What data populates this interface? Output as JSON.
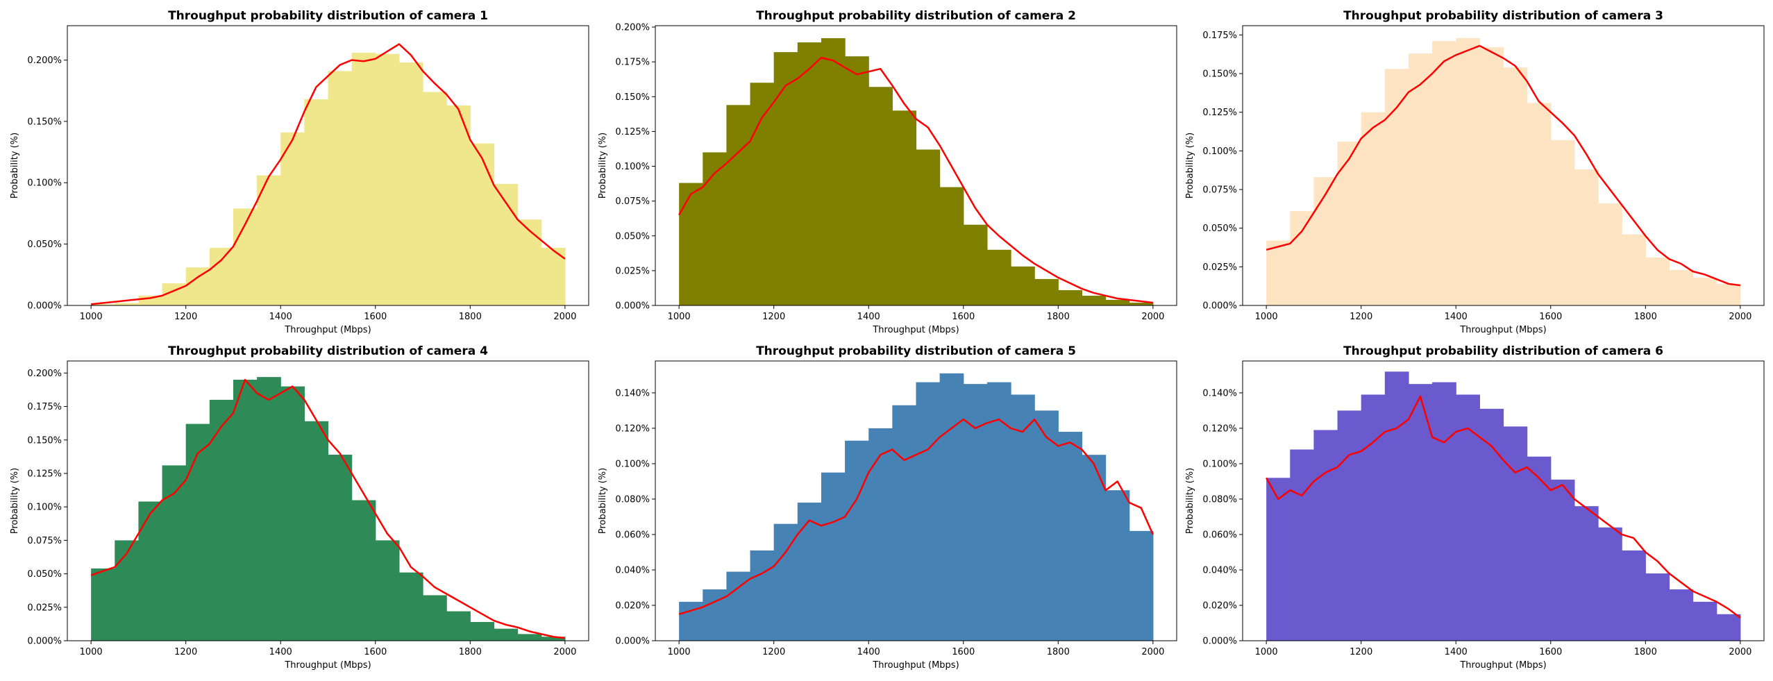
{
  "chart_data": [
    {
      "type": "bar",
      "title": "Throughput probability distribution of camera 1",
      "xlabel": "Throughput (Mbps)",
      "ylabel": "Probability (%)",
      "xlim": [
        950,
        2050
      ],
      "ylim": [
        0,
        0.00228
      ],
      "xticks": [
        1000,
        1200,
        1400,
        1600,
        1800,
        2000
      ],
      "xtick_labels": [
        "1000",
        "1200",
        "1400",
        "1600",
        "1800",
        "2000"
      ],
      "yticks": [
        0,
        0.0005,
        0.001,
        0.0015,
        0.002
      ],
      "ytick_labels": [
        "0.000%",
        "0.050%",
        "0.100%",
        "0.150%",
        "0.200%"
      ],
      "bar_color": "#f0e68c",
      "line_color": "#ff0000",
      "bins": [
        1000,
        1050,
        1100,
        1150,
        1200,
        1250,
        1300,
        1350,
        1400,
        1450,
        1500,
        1550,
        1600,
        1650,
        1700,
        1750,
        1800,
        1850,
        1900,
        1950,
        2000
      ],
      "bar_values": [
        1e-05,
        2e-05,
        8e-05,
        0.00018,
        0.00031,
        0.00047,
        0.00079,
        0.00106,
        0.00141,
        0.00168,
        0.00191,
        0.00206,
        0.00205,
        0.00198,
        0.00174,
        0.00163,
        0.00132,
        0.00099,
        0.0007,
        0.00047
      ],
      "curve_x": [
        1000,
        1025,
        1050,
        1075,
        1100,
        1125,
        1150,
        1175,
        1200,
        1225,
        1250,
        1275,
        1300,
        1325,
        1350,
        1375,
        1400,
        1425,
        1450,
        1475,
        1500,
        1525,
        1550,
        1575,
        1600,
        1625,
        1650,
        1675,
        1700,
        1725,
        1750,
        1775,
        1800,
        1825,
        1850,
        1875,
        1900,
        1925,
        1950,
        1975,
        2000
      ],
      "curve_y": [
        1e-05,
        2e-05,
        3e-05,
        4e-05,
        5e-05,
        6e-05,
        8e-05,
        0.00012,
        0.00016,
        0.00023,
        0.00029,
        0.00037,
        0.00048,
        0.00066,
        0.00085,
        0.00105,
        0.00119,
        0.00135,
        0.00158,
        0.00178,
        0.00187,
        0.00196,
        0.002,
        0.00199,
        0.00201,
        0.00207,
        0.00213,
        0.00204,
        0.00191,
        0.00181,
        0.00172,
        0.0016,
        0.00135,
        0.0012,
        0.00098,
        0.00084,
        0.0007,
        0.00061,
        0.00053,
        0.00045,
        0.00038
      ]
    },
    {
      "type": "bar",
      "title": "Throughput probability distribution of camera 2",
      "xlabel": "Throughput (Mbps)",
      "ylabel": "Probability (%)",
      "xlim": [
        950,
        2050
      ],
      "ylim": [
        0,
        0.00201
      ],
      "xticks": [
        1000,
        1200,
        1400,
        1600,
        1800,
        2000
      ],
      "xtick_labels": [
        "1000",
        "1200",
        "1400",
        "1600",
        "1800",
        "2000"
      ],
      "yticks": [
        0,
        0.00025,
        0.0005,
        0.00075,
        0.001,
        0.00125,
        0.0015,
        0.00175,
        0.002
      ],
      "ytick_labels": [
        "0.000%",
        "0.025%",
        "0.050%",
        "0.075%",
        "0.100%",
        "0.125%",
        "0.150%",
        "0.175%",
        "0.200%"
      ],
      "bar_color": "#808000",
      "line_color": "#ff0000",
      "bins": [
        1000,
        1050,
        1100,
        1150,
        1200,
        1250,
        1300,
        1350,
        1400,
        1450,
        1500,
        1550,
        1600,
        1650,
        1700,
        1750,
        1800,
        1850,
        1900,
        1950,
        2000
      ],
      "bar_values": [
        0.00088,
        0.0011,
        0.00144,
        0.0016,
        0.00182,
        0.00189,
        0.00192,
        0.00179,
        0.00157,
        0.0014,
        0.00112,
        0.00085,
        0.00058,
        0.0004,
        0.00028,
        0.00019,
        0.00011,
        7e-05,
        4e-05,
        2e-05
      ],
      "curve_x": [
        1000,
        1025,
        1050,
        1075,
        1100,
        1125,
        1150,
        1175,
        1200,
        1225,
        1250,
        1275,
        1300,
        1325,
        1350,
        1375,
        1400,
        1425,
        1450,
        1475,
        1500,
        1525,
        1550,
        1575,
        1600,
        1625,
        1650,
        1675,
        1700,
        1725,
        1750,
        1775,
        1800,
        1825,
        1850,
        1875,
        1900,
        1925,
        1950,
        1975,
        2000
      ],
      "curve_y": [
        0.00065,
        0.0008,
        0.00085,
        0.00095,
        0.00102,
        0.0011,
        0.00118,
        0.00135,
        0.00146,
        0.00158,
        0.00163,
        0.0017,
        0.00178,
        0.00176,
        0.00171,
        0.00166,
        0.00168,
        0.0017,
        0.00158,
        0.00145,
        0.00134,
        0.00128,
        0.00115,
        0.001,
        0.00085,
        0.0007,
        0.00058,
        0.0005,
        0.00043,
        0.00036,
        0.0003,
        0.00025,
        0.0002,
        0.00016,
        0.00012,
        9e-05,
        7e-05,
        5e-05,
        4e-05,
        3e-05,
        2e-05
      ]
    },
    {
      "type": "bar",
      "title": "Throughput probability distribution of camera 3",
      "xlabel": "Throughput (Mbps)",
      "ylabel": "Probability (%)",
      "xlim": [
        950,
        2050
      ],
      "ylim": [
        0,
        0.00181
      ],
      "xticks": [
        1000,
        1200,
        1400,
        1600,
        1800,
        2000
      ],
      "xtick_labels": [
        "1000",
        "1200",
        "1400",
        "1600",
        "1800",
        "2000"
      ],
      "yticks": [
        0,
        0.00025,
        0.0005,
        0.00075,
        0.001,
        0.00125,
        0.0015,
        0.00175
      ],
      "ytick_labels": [
        "0.000%",
        "0.025%",
        "0.050%",
        "0.075%",
        "0.100%",
        "0.125%",
        "0.150%",
        "0.175%"
      ],
      "bar_color": "#ffe4c4",
      "line_color": "#ff0000",
      "bins": [
        1000,
        1050,
        1100,
        1150,
        1200,
        1250,
        1300,
        1350,
        1400,
        1450,
        1500,
        1550,
        1600,
        1650,
        1700,
        1750,
        1800,
        1850,
        1900,
        1950,
        2000
      ],
      "bar_values": [
        0.00042,
        0.00061,
        0.00083,
        0.00106,
        0.00125,
        0.00153,
        0.00163,
        0.00171,
        0.00173,
        0.00167,
        0.00154,
        0.00131,
        0.00107,
        0.00088,
        0.00066,
        0.00046,
        0.00031,
        0.00023,
        0.00018,
        0.00014
      ],
      "curve_x": [
        1000,
        1025,
        1050,
        1075,
        1100,
        1125,
        1150,
        1175,
        1200,
        1225,
        1250,
        1275,
        1300,
        1325,
        1350,
        1375,
        1400,
        1425,
        1450,
        1475,
        1500,
        1525,
        1550,
        1575,
        1600,
        1625,
        1650,
        1675,
        1700,
        1725,
        1750,
        1775,
        1800,
        1825,
        1850,
        1875,
        1900,
        1925,
        1950,
        1975,
        2000
      ],
      "curve_y": [
        0.00036,
        0.00038,
        0.0004,
        0.00048,
        0.0006,
        0.00072,
        0.00085,
        0.00095,
        0.00108,
        0.00115,
        0.0012,
        0.00128,
        0.00138,
        0.00143,
        0.0015,
        0.00158,
        0.00162,
        0.00165,
        0.00168,
        0.00164,
        0.0016,
        0.00155,
        0.00145,
        0.00132,
        0.00125,
        0.00118,
        0.0011,
        0.00098,
        0.00085,
        0.00075,
        0.00065,
        0.00055,
        0.00045,
        0.00036,
        0.0003,
        0.00027,
        0.00022,
        0.0002,
        0.00017,
        0.00014,
        0.00013
      ]
    },
    {
      "type": "bar",
      "title": "Throughput probability distribution of camera 4",
      "xlabel": "Throughput (Mbps)",
      "ylabel": "Probability (%)",
      "xlim": [
        950,
        2050
      ],
      "ylim": [
        0,
        0.00209
      ],
      "xticks": [
        1000,
        1200,
        1400,
        1600,
        1800,
        2000
      ],
      "xtick_labels": [
        "1000",
        "1200",
        "1400",
        "1600",
        "1800",
        "2000"
      ],
      "yticks": [
        0,
        0.00025,
        0.0005,
        0.00075,
        0.001,
        0.00125,
        0.0015,
        0.00175,
        0.002
      ],
      "ytick_labels": [
        "0.000%",
        "0.025%",
        "0.050%",
        "0.075%",
        "0.100%",
        "0.125%",
        "0.150%",
        "0.175%",
        "0.200%"
      ],
      "bar_color": "#2e8b57",
      "line_color": "#ff0000",
      "bins": [
        1000,
        1050,
        1100,
        1150,
        1200,
        1250,
        1300,
        1350,
        1400,
        1450,
        1500,
        1550,
        1600,
        1650,
        1700,
        1750,
        1800,
        1850,
        1900,
        1950,
        2000
      ],
      "bar_values": [
        0.00054,
        0.00075,
        0.00104,
        0.00131,
        0.00162,
        0.0018,
        0.00195,
        0.00197,
        0.0019,
        0.00164,
        0.00139,
        0.00105,
        0.00075,
        0.00051,
        0.00034,
        0.00022,
        0.00014,
        9e-05,
        5e-05,
        3e-05
      ],
      "curve_x": [
        1000,
        1025,
        1050,
        1075,
        1100,
        1125,
        1150,
        1175,
        1200,
        1225,
        1250,
        1275,
        1300,
        1325,
        1350,
        1375,
        1400,
        1425,
        1450,
        1475,
        1500,
        1525,
        1550,
        1575,
        1600,
        1625,
        1650,
        1675,
        1700,
        1725,
        1750,
        1775,
        1800,
        1825,
        1850,
        1875,
        1900,
        1925,
        1950,
        1975,
        2000
      ],
      "curve_y": [
        0.00049,
        0.00052,
        0.00055,
        0.00065,
        0.0008,
        0.00095,
        0.00105,
        0.0011,
        0.0012,
        0.0014,
        0.00147,
        0.0016,
        0.0017,
        0.00195,
        0.00185,
        0.0018,
        0.00185,
        0.0019,
        0.0018,
        0.00165,
        0.0015,
        0.0014,
        0.00125,
        0.0011,
        0.00095,
        0.0008,
        0.0007,
        0.00055,
        0.00048,
        0.0004,
        0.00035,
        0.0003,
        0.00025,
        0.0002,
        0.00015,
        0.00012,
        0.0001,
        7e-05,
        5e-05,
        3e-05,
        2e-05
      ]
    },
    {
      "type": "bar",
      "title": "Throughput probability distribution of camera 5",
      "xlabel": "Throughput (Mbps)",
      "ylabel": "Probability (%)",
      "xlim": [
        950,
        2050
      ],
      "ylim": [
        0,
        0.00158
      ],
      "xticks": [
        1000,
        1200,
        1400,
        1600,
        1800,
        2000
      ],
      "xtick_labels": [
        "1000",
        "1200",
        "1400",
        "1600",
        "1800",
        "2000"
      ],
      "yticks": [
        0,
        0.0002,
        0.0004,
        0.0006,
        0.0008,
        0.001,
        0.0012,
        0.0014
      ],
      "ytick_labels": [
        "0.000%",
        "0.020%",
        "0.040%",
        "0.060%",
        "0.080%",
        "0.100%",
        "0.120%",
        "0.140%"
      ],
      "bar_color": "#4682b4",
      "line_color": "#ff0000",
      "bins": [
        1000,
        1050,
        1100,
        1150,
        1200,
        1250,
        1300,
        1350,
        1400,
        1450,
        1500,
        1550,
        1600,
        1650,
        1700,
        1750,
        1800,
        1850,
        1900,
        1950,
        2000
      ],
      "bar_values": [
        0.00022,
        0.00029,
        0.00039,
        0.00051,
        0.00066,
        0.00078,
        0.00095,
        0.00113,
        0.0012,
        0.00133,
        0.00146,
        0.00151,
        0.00145,
        0.00146,
        0.00139,
        0.0013,
        0.00118,
        0.00105,
        0.00085,
        0.00062
      ],
      "curve_x": [
        1000,
        1025,
        1050,
        1075,
        1100,
        1125,
        1150,
        1175,
        1200,
        1225,
        1250,
        1275,
        1300,
        1325,
        1350,
        1375,
        1400,
        1425,
        1450,
        1475,
        1500,
        1525,
        1550,
        1575,
        1600,
        1625,
        1650,
        1675,
        1700,
        1725,
        1750,
        1775,
        1800,
        1825,
        1850,
        1875,
        1900,
        1925,
        1950,
        1975,
        2000
      ],
      "curve_y": [
        0.00015,
        0.00017,
        0.00019,
        0.00022,
        0.00025,
        0.0003,
        0.00035,
        0.00038,
        0.00042,
        0.0005,
        0.0006,
        0.00068,
        0.00065,
        0.00067,
        0.0007,
        0.0008,
        0.00095,
        0.00105,
        0.00108,
        0.00102,
        0.00105,
        0.00108,
        0.00115,
        0.0012,
        0.00125,
        0.0012,
        0.00123,
        0.00125,
        0.0012,
        0.00118,
        0.00125,
        0.00115,
        0.0011,
        0.00112,
        0.00108,
        0.001,
        0.00085,
        0.0009,
        0.00078,
        0.00075,
        0.0006
      ]
    },
    {
      "type": "bar",
      "title": "Throughput probability distribution of camera 6",
      "xlabel": "Throughput (Mbps)",
      "ylabel": "Probability (%)",
      "xlim": [
        950,
        2050
      ],
      "ylim": [
        0,
        0.00158
      ],
      "xticks": [
        1000,
        1200,
        1400,
        1600,
        1800,
        2000
      ],
      "xtick_labels": [
        "1000",
        "1200",
        "1400",
        "1600",
        "1800",
        "2000"
      ],
      "yticks": [
        0,
        0.0002,
        0.0004,
        0.0006,
        0.0008,
        0.001,
        0.0012,
        0.0014
      ],
      "ytick_labels": [
        "0.000%",
        "0.020%",
        "0.040%",
        "0.060%",
        "0.080%",
        "0.100%",
        "0.120%",
        "0.140%"
      ],
      "bar_color": "#6a5acd",
      "line_color": "#ff0000",
      "bins": [
        1000,
        1050,
        1100,
        1150,
        1200,
        1250,
        1300,
        1350,
        1400,
        1450,
        1500,
        1550,
        1600,
        1650,
        1700,
        1750,
        1800,
        1850,
        1900,
        1950,
        2000
      ],
      "bar_values": [
        0.00092,
        0.00108,
        0.00119,
        0.0013,
        0.00139,
        0.00152,
        0.00145,
        0.00146,
        0.00139,
        0.00131,
        0.00121,
        0.00104,
        0.00091,
        0.00076,
        0.00064,
        0.00051,
        0.00038,
        0.00029,
        0.00022,
        0.00015
      ],
      "curve_x": [
        1000,
        1025,
        1050,
        1075,
        1100,
        1125,
        1150,
        1175,
        1200,
        1225,
        1250,
        1275,
        1300,
        1325,
        1350,
        1375,
        1400,
        1425,
        1450,
        1475,
        1500,
        1525,
        1550,
        1575,
        1600,
        1625,
        1650,
        1675,
        1700,
        1725,
        1750,
        1775,
        1800,
        1825,
        1850,
        1875,
        1900,
        1925,
        1950,
        1975,
        2000
      ],
      "curve_y": [
        0.00092,
        0.0008,
        0.00085,
        0.00082,
        0.0009,
        0.00095,
        0.00098,
        0.00105,
        0.00107,
        0.00112,
        0.00118,
        0.0012,
        0.00125,
        0.00138,
        0.00115,
        0.00112,
        0.00118,
        0.0012,
        0.00115,
        0.0011,
        0.00102,
        0.00095,
        0.00098,
        0.00092,
        0.00085,
        0.00088,
        0.0008,
        0.00075,
        0.0007,
        0.00065,
        0.0006,
        0.00058,
        0.0005,
        0.00045,
        0.00038,
        0.00033,
        0.00028,
        0.00025,
        0.00022,
        0.00018,
        0.00013
      ]
    }
  ]
}
